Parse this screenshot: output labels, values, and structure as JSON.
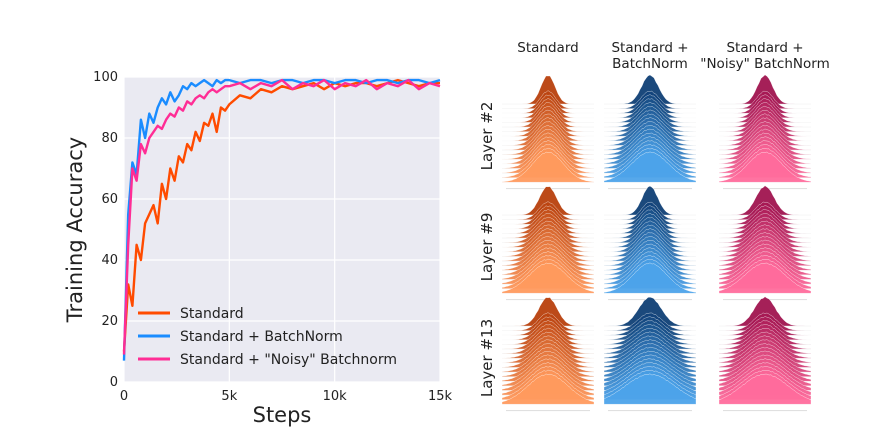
{
  "chart_data": [
    {
      "type": "line",
      "title": "",
      "xlabel": "Steps",
      "ylabel": "Training Accuracy",
      "xlim": [
        0,
        15000
      ],
      "ylim": [
        0,
        100
      ],
      "xticks": [
        0,
        5000,
        10000,
        15000
      ],
      "xtick_labels": [
        "0",
        "5k",
        "10k",
        "15k"
      ],
      "yticks": [
        0,
        20,
        40,
        60,
        80,
        100
      ],
      "ytick_labels": [
        "0",
        "20",
        "40",
        "60",
        "80",
        "100"
      ],
      "grid": true,
      "legend_position": "bottom-left",
      "x": [
        0,
        200,
        400,
        600,
        800,
        1000,
        1200,
        1400,
        1600,
        1800,
        2000,
        2200,
        2400,
        2600,
        2800,
        3000,
        3200,
        3400,
        3600,
        3800,
        4000,
        4200,
        4400,
        4600,
        4800,
        5000,
        5500,
        6000,
        6500,
        7000,
        7500,
        8000,
        8500,
        9000,
        9500,
        10000,
        10500,
        11000,
        11500,
        12000,
        12500,
        13000,
        13500,
        14000,
        14500,
        15000
      ],
      "series": [
        {
          "name": "Standard",
          "color": "#ff4b00",
          "values": [
            10,
            32,
            25,
            45,
            40,
            52,
            55,
            58,
            52,
            65,
            60,
            70,
            66,
            74,
            72,
            78,
            76,
            82,
            79,
            85,
            84,
            88,
            82,
            90,
            89,
            91,
            94,
            93,
            96,
            95,
            97,
            96,
            97,
            98,
            96,
            98,
            97,
            98,
            98,
            97,
            98,
            99,
            98,
            97,
            98,
            98
          ]
        },
        {
          "name": "Standard + BatchNorm",
          "color": "#1a8cff",
          "values": [
            7,
            55,
            72,
            68,
            86,
            80,
            88,
            85,
            90,
            93,
            91,
            95,
            92,
            94,
            97,
            96,
            98,
            97,
            98,
            99,
            98,
            97,
            99,
            98,
            99,
            99,
            98,
            99,
            99,
            98,
            99,
            99,
            98,
            99,
            99,
            98,
            99,
            99,
            98,
            99,
            99,
            98,
            99,
            99,
            98,
            99
          ]
        },
        {
          "name": "Standard + \"Noisy\" Batchnorm",
          "color": "#ff2d95",
          "values": [
            9,
            45,
            70,
            66,
            78,
            75,
            80,
            82,
            84,
            83,
            86,
            88,
            87,
            90,
            89,
            92,
            91,
            93,
            94,
            93,
            95,
            96,
            95,
            96,
            97,
            97,
            98,
            96,
            98,
            97,
            99,
            96,
            98,
            97,
            99,
            96,
            98,
            97,
            99,
            96,
            98,
            97,
            99,
            96,
            98,
            97
          ]
        }
      ]
    },
    {
      "type": "ridgeline-grid",
      "columns": [
        "Standard",
        "Standard +\nBatchNorm",
        "Standard +\n\"Noisy\" BatchNorm"
      ],
      "rows": [
        "Layer #2",
        "Layer #9",
        "Layer #13"
      ],
      "column_colors": [
        {
          "top": "#b8400d",
          "bottom": "#ff9a5e"
        },
        {
          "top": "#0f3f75",
          "bottom": "#4da3ea"
        },
        {
          "top": "#a0144f",
          "bottom": "#ff6b9c"
        }
      ],
      "peak_spread": [
        [
          1.0,
          1.2,
          1.1
        ],
        [
          1.2,
          1.1,
          1.3
        ],
        [
          1.3,
          1.6,
          1.5
        ]
      ]
    }
  ]
}
